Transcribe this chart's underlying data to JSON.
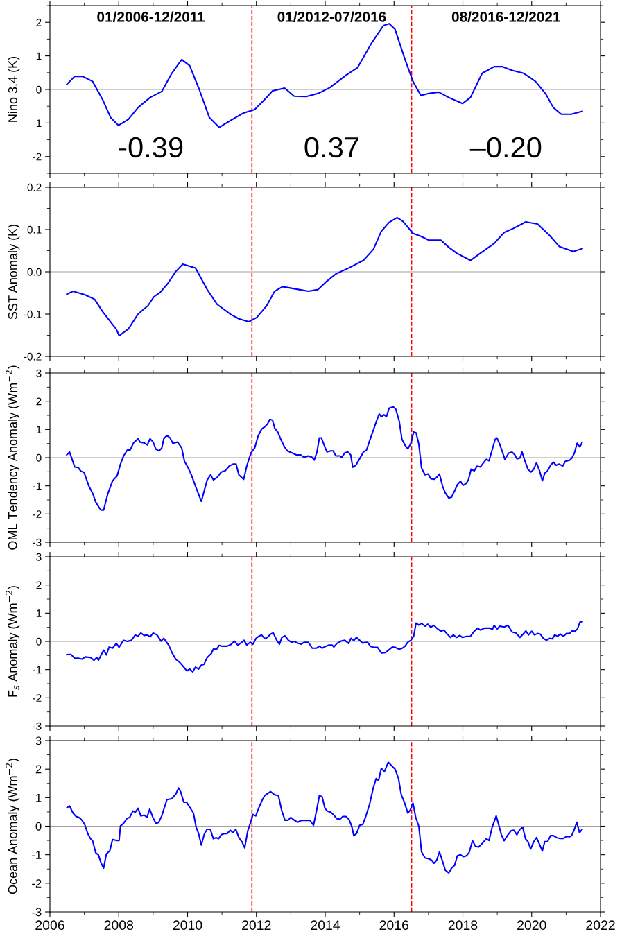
{
  "chart_data": [
    {
      "type": "line",
      "ylabel": "Nino 3.4 (K)",
      "color": "#0000ff",
      "xlim": [
        2006,
        2022
      ],
      "xticks": [
        2006,
        2008,
        2010,
        2012,
        2014,
        2016,
        2018,
        2020,
        2022
      ],
      "ylim": [
        -2.5,
        2.5
      ],
      "yticks": [
        -2,
        {
          "value": -1,
          "label": "1"
        },
        0,
        1,
        2
      ],
      "tick_labels": "y",
      "annotations": [
        "01/2006-12/2011",
        "01/2012-07/2016",
        "08/2016-12/2021",
        "-0.39",
        "0.37",
        "–0.20"
      ],
      "ref_lines": [
        {
          "axis": "y",
          "value": 0,
          "color": "#a0a0a0",
          "line_style": "solid"
        },
        {
          "axis": "x",
          "value": 2011.87,
          "color": "#ff0000",
          "line_style": "dashed"
        },
        {
          "axis": "x",
          "value": 2016.51,
          "color": "#ff0000",
          "line_style": "dashed"
        }
      ],
      "x": [
        2006.49,
        2006.72,
        2006.95,
        2007.24,
        2007.53,
        2007.76,
        2007.99,
        2008.28,
        2008.56,
        2008.91,
        2009.25,
        2009.54,
        2009.83,
        2010.06,
        2010.34,
        2010.63,
        2010.92,
        2011.21,
        2011.61,
        2011.95,
        2012.24,
        2012.47,
        2012.82,
        2013.1,
        2013.45,
        2013.79,
        2014.14,
        2014.6,
        2014.94,
        2015.34,
        2015.69,
        2015.86,
        2016.03,
        2016.32,
        2016.55,
        2016.78,
        2017.01,
        2017.3,
        2017.59,
        2017.99,
        2018.22,
        2018.56,
        2018.91,
        2019.14,
        2019.43,
        2019.77,
        2020.11,
        2020.4,
        2020.63,
        2020.86,
        2021.15,
        2021.47
      ],
      "values": [
        0.15,
        0.39,
        0.39,
        0.24,
        -0.3,
        -0.83,
        -1.07,
        -0.89,
        -0.54,
        -0.24,
        -0.06,
        0.48,
        0.89,
        0.71,
        0,
        -0.83,
        -1.13,
        -0.95,
        -0.71,
        -0.6,
        -0.3,
        -0.04,
        0.04,
        -0.2,
        -0.21,
        -0.12,
        0.06,
        0.42,
        0.65,
        1.37,
        1.9,
        1.96,
        1.79,
        0.89,
        0.24,
        -0.18,
        -0.12,
        -0.08,
        -0.24,
        -0.42,
        -0.24,
        0.48,
        0.68,
        0.68,
        0.57,
        0.48,
        0.24,
        -0.12,
        -0.54,
        -0.74,
        -0.74,
        -0.65
      ]
    },
    {
      "type": "line",
      "ylabel": "SST Anomaly (K)",
      "color": "#0000ff",
      "xlim": [
        2006,
        2022
      ],
      "xticks": [
        2006,
        2008,
        2010,
        2012,
        2014,
        2016,
        2018,
        2020,
        2022
      ],
      "ylim": [
        -0.2,
        0.2
      ],
      "yticks": [
        -0.2,
        -0.1,
        {
          "value": 0,
          "label": "0.0"
        },
        0.1,
        0.2
      ],
      "tick_labels": "y",
      "ref_lines": [
        {
          "axis": "y",
          "value": 0,
          "color": "#a0a0a0",
          "line_style": "solid"
        },
        {
          "axis": "x",
          "value": 2011.87,
          "color": "#ff0000",
          "line_style": "dashed"
        },
        {
          "axis": "x",
          "value": 2016.51,
          "color": "#ff0000",
          "line_style": "dashed"
        }
      ],
      "x": [
        2006.49,
        2006.67,
        2007.01,
        2007.3,
        2007.53,
        2007.93,
        2008.01,
        2008.28,
        2008.56,
        2008.85,
        2009.02,
        2009.2,
        2009.43,
        2009.66,
        2009.86,
        2010.23,
        2010.57,
        2010.86,
        2011.26,
        2011.49,
        2011.78,
        2012.01,
        2012.3,
        2012.53,
        2012.76,
        2013.1,
        2013.51,
        2013.79,
        2014.02,
        2014.31,
        2014.71,
        2015.11,
        2015.4,
        2015.63,
        2015.86,
        2016.09,
        2016.26,
        2016.55,
        2016.78,
        2017.01,
        2017.36,
        2017.59,
        2017.82,
        2018.22,
        2018.51,
        2018.91,
        2019.2,
        2019.48,
        2019.83,
        2020.17,
        2020.52,
        2020.8,
        2021.21,
        2021.47
      ],
      "values": [
        -0.053,
        -0.046,
        -0.054,
        -0.065,
        -0.094,
        -0.136,
        -0.151,
        -0.135,
        -0.1,
        -0.08,
        -0.059,
        -0.049,
        -0.027,
        0.001,
        0.018,
        0.009,
        -0.042,
        -0.077,
        -0.101,
        -0.111,
        -0.118,
        -0.108,
        -0.08,
        -0.046,
        -0.035,
        -0.04,
        -0.046,
        -0.042,
        -0.024,
        -0.005,
        0.01,
        0.027,
        0.053,
        0.096,
        0.117,
        0.128,
        0.119,
        0.091,
        0.084,
        0.075,
        0.075,
        0.058,
        0.044,
        0.027,
        0.044,
        0.067,
        0.093,
        0.103,
        0.118,
        0.113,
        0.086,
        0.06,
        0.048,
        0.055
      ]
    },
    {
      "type": "line",
      "ylabel": "OML Tendency Anomaly (Wm$^{−2}$)",
      "color": "#0000ff",
      "xlim": [
        2006,
        2022
      ],
      "xticks": [
        2006,
        2008,
        2010,
        2012,
        2014,
        2016,
        2018,
        2020,
        2022
      ],
      "ylim": [
        -3,
        3
      ],
      "yticks": [
        -3,
        -2,
        -1,
        0,
        1,
        2,
        3
      ],
      "tick_labels": "y",
      "ref_lines": [
        {
          "axis": "y",
          "value": 0,
          "color": "#a0a0a0",
          "line_style": "solid"
        },
        {
          "axis": "x",
          "value": 2011.87,
          "color": "#ff0000",
          "line_style": "dashed"
        },
        {
          "axis": "x",
          "value": 2016.51,
          "color": "#ff0000",
          "line_style": "dashed"
        }
      ],
      "x": [
        2006.49,
        2006.57,
        2006.72,
        2006.82,
        2006.9,
        2006.99,
        2007.13,
        2007.24,
        2007.33,
        2007.44,
        2007.49,
        2007.56,
        2007.68,
        2007.82,
        2007.95,
        2008.05,
        2008.14,
        2008.25,
        2008.33,
        2008.43,
        2008.56,
        2008.62,
        2008.74,
        2008.83,
        2008.91,
        2009.0,
        2009.08,
        2009.17,
        2009.25,
        2009.31,
        2009.4,
        2009.49,
        2009.57,
        2009.71,
        2009.83,
        2009.91,
        2010.02,
        2010.11,
        2010.23,
        2010.4,
        2010.57,
        2010.67,
        2010.75,
        2010.86,
        2010.98,
        2011.09,
        2011.21,
        2011.32,
        2011.41,
        2011.49,
        2011.63,
        2011.72,
        2011.84,
        2011.95,
        2012.05,
        2012.15,
        2012.24,
        2012.32,
        2012.39,
        2012.47,
        2012.53,
        2012.62,
        2012.72,
        2012.82,
        2012.9,
        2013.05,
        2013.16,
        2013.28,
        2013.39,
        2013.51,
        2013.62,
        2013.68,
        2013.76,
        2013.83,
        2013.89,
        2013.97,
        2014.05,
        2014.16,
        2014.23,
        2014.31,
        2014.43,
        2014.48,
        2014.57,
        2014.66,
        2014.74,
        2014.8,
        2014.89,
        2015.0,
        2015.11,
        2015.2,
        2015.29,
        2015.4,
        2015.49,
        2015.57,
        2015.63,
        2015.71,
        2015.78,
        2015.86,
        2015.98,
        2016.05,
        2016.15,
        2016.23,
        2016.32,
        2016.4,
        2016.49,
        2016.57,
        2016.64,
        2016.72,
        2016.8,
        2016.9,
        2016.99,
        2017.07,
        2017.16,
        2017.24,
        2017.32,
        2017.41,
        2017.49,
        2017.59,
        2017.67,
        2017.76,
        2017.84,
        2017.93,
        2018.01,
        2018.1,
        2018.16,
        2018.24,
        2018.33,
        2018.41,
        2018.51,
        2018.6,
        2018.68,
        2018.76,
        2018.85,
        2018.94,
        2018.99,
        2019.07,
        2019.17,
        2019.22,
        2019.33,
        2019.43,
        2019.51,
        2019.57,
        2019.66,
        2019.72,
        2019.8,
        2019.89,
        2019.98,
        2020.06,
        2020.14,
        2020.23,
        2020.31,
        2020.38,
        2020.46,
        2020.55,
        2020.63,
        2020.71,
        2020.8,
        2020.9,
        2020.98,
        2021.1,
        2021.17,
        2021.24,
        2021.32,
        2021.4,
        2021.47
      ],
      "values": [
        0.1,
        0.2,
        -0.33,
        -0.35,
        -0.48,
        -0.52,
        -1.0,
        -1.26,
        -1.57,
        -1.79,
        -1.86,
        -1.86,
        -1.29,
        -0.82,
        -0.65,
        -0.23,
        0.06,
        0.27,
        0.27,
        0.52,
        0.67,
        0.55,
        0.52,
        0.45,
        0.67,
        0.55,
        0.3,
        0.24,
        0.34,
        0.67,
        0.79,
        0.7,
        0.51,
        0.55,
        0.34,
        -0.13,
        -0.37,
        -0.61,
        -1.01,
        -1.55,
        -0.79,
        -0.61,
        -0.79,
        -0.7,
        -0.51,
        -0.47,
        -0.3,
        -0.23,
        -0.23,
        -0.61,
        -0.77,
        -0.3,
        0.16,
        0.34,
        0.77,
        1.01,
        1.09,
        1.19,
        1.36,
        1.33,
        1.05,
        0.91,
        0.62,
        0.37,
        0.24,
        0.16,
        0.1,
        0.1,
        0.01,
        0.06,
        0.01,
        -0.09,
        0.2,
        0.7,
        0.7,
        0.44,
        0.2,
        0.24,
        0.24,
        0.06,
        0.06,
        0.01,
        0.17,
        0.2,
        0.1,
        -0.34,
        -0.27,
        -0.04,
        0.2,
        0.27,
        0.6,
        0.98,
        1.3,
        1.55,
        1.45,
        1.52,
        1.45,
        1.76,
        1.8,
        1.72,
        1.3,
        0.65,
        0.44,
        0.31,
        0.51,
        0.91,
        0.88,
        0.48,
        -0.37,
        -0.61,
        -0.58,
        -0.75,
        -0.77,
        -0.7,
        -0.58,
        -1.01,
        -1.25,
        -1.43,
        -1.4,
        -1.18,
        -0.96,
        -0.84,
        -0.98,
        -0.91,
        -0.79,
        -0.41,
        -0.47,
        -0.3,
        -0.33,
        -0.18,
        -0.06,
        -0.11,
        0.27,
        0.65,
        0.7,
        0.48,
        0.13,
        -0.06,
        0.16,
        0.2,
        0.1,
        -0.04,
        -0.01,
        0.2,
        -0.11,
        -0.41,
        -0.51,
        -0.41,
        -0.18,
        -0.47,
        -0.82,
        -0.55,
        -0.47,
        -0.27,
        -0.16,
        -0.27,
        -0.23,
        -0.3,
        -0.13,
        -0.09,
        -0.01,
        0.16,
        0.51,
        0.38,
        0.55
      ]
    },
    {
      "type": "line",
      "ylabel": "F$_{s}$ Anomaly (Wm$^{−2}$)",
      "color": "#0000ff",
      "xlim": [
        2006,
        2022
      ],
      "xticks": [
        2006,
        2008,
        2010,
        2012,
        2014,
        2016,
        2018,
        2020,
        2022
      ],
      "ylim": [
        -3,
        3
      ],
      "yticks": [
        -3,
        -2,
        -1,
        0,
        1,
        2,
        3
      ],
      "tick_labels": "y",
      "ref_lines": [
        {
          "axis": "y",
          "value": 0,
          "color": "#a0a0a0",
          "line_style": "solid"
        },
        {
          "axis": "x",
          "value": 2011.87,
          "color": "#ff0000",
          "line_style": "dashed"
        },
        {
          "axis": "x",
          "value": 2016.51,
          "color": "#ff0000",
          "line_style": "dashed"
        }
      ],
      "x": [
        2006.49,
        2006.61,
        2006.72,
        2006.84,
        2006.93,
        2007.03,
        2007.18,
        2007.28,
        2007.36,
        2007.41,
        2007.56,
        2007.64,
        2007.72,
        2007.82,
        2007.93,
        2008.01,
        2008.14,
        2008.25,
        2008.37,
        2008.48,
        2008.56,
        2008.64,
        2008.74,
        2008.83,
        2008.91,
        2009.0,
        2009.11,
        2009.23,
        2009.31,
        2009.45,
        2009.54,
        2009.66,
        2009.77,
        2009.89,
        2009.98,
        2010.06,
        2010.15,
        2010.23,
        2010.32,
        2010.4,
        2010.48,
        2010.57,
        2010.69,
        2010.75,
        2010.84,
        2010.92,
        2011.01,
        2011.15,
        2011.26,
        2011.36,
        2011.46,
        2011.55,
        2011.64,
        2011.72,
        2011.82,
        2011.9,
        2011.99,
        2012.07,
        2012.15,
        2012.24,
        2012.32,
        2012.41,
        2012.49,
        2012.59,
        2012.67,
        2012.74,
        2012.83,
        2012.93,
        2013.02,
        2013.1,
        2013.2,
        2013.3,
        2013.39,
        2013.51,
        2013.62,
        2013.74,
        2013.83,
        2013.91,
        2014.02,
        2014.11,
        2014.2,
        2014.25,
        2014.34,
        2014.46,
        2014.57,
        2014.68,
        2014.75,
        2014.83,
        2014.91,
        2015.0,
        2015.09,
        2015.15,
        2015.23,
        2015.31,
        2015.4,
        2015.52,
        2015.63,
        2015.75,
        2015.84,
        2015.95,
        2016.03,
        2016.15,
        2016.24,
        2016.32,
        2016.4,
        2016.49,
        2016.57,
        2016.64,
        2016.72,
        2016.8,
        2016.9,
        2016.98,
        2017.07,
        2017.16,
        2017.24,
        2017.36,
        2017.45,
        2017.53,
        2017.64,
        2017.72,
        2017.82,
        2017.91,
        2017.99,
        2018.1,
        2018.22,
        2018.33,
        2018.43,
        2018.51,
        2018.63,
        2018.77,
        2018.86,
        2018.91,
        2019.0,
        2019.07,
        2019.2,
        2019.31,
        2019.43,
        2019.54,
        2019.66,
        2019.75,
        2019.83,
        2019.91,
        2020.0,
        2020.08,
        2020.17,
        2020.25,
        2020.34,
        2020.43,
        2020.52,
        2020.6,
        2020.67,
        2020.75,
        2020.83,
        2020.92,
        2021.01,
        2021.1,
        2021.17,
        2021.26,
        2021.33,
        2021.4,
        2021.47
      ],
      "values": [
        -0.47,
        -0.46,
        -0.6,
        -0.6,
        -0.63,
        -0.55,
        -0.57,
        -0.67,
        -0.57,
        -0.67,
        -0.31,
        -0.48,
        -0.2,
        -0.24,
        -0.07,
        -0.21,
        0.04,
        0,
        0.04,
        0.23,
        0.18,
        0.3,
        0.21,
        0.23,
        0.16,
        0.3,
        0.23,
        0.01,
        0.11,
        -0.13,
        -0.38,
        -0.64,
        -0.74,
        -0.91,
        -1.05,
        -0.98,
        -1.08,
        -0.91,
        -0.98,
        -0.84,
        -0.81,
        -0.57,
        -0.43,
        -0.27,
        -0.28,
        -0.14,
        -0.17,
        -0.17,
        -0.11,
        0.01,
        -0.13,
        -0.06,
        0.04,
        -0.13,
        -0.03,
        -0.1,
        0.11,
        0.18,
        0.23,
        0.1,
        0.14,
        0.26,
        0.3,
        0.04,
        -0.1,
        0.14,
        0.2,
        0.04,
        -0.03,
        0,
        -0.06,
        -0.1,
        -0.03,
        -0.03,
        -0.24,
        -0.24,
        -0.17,
        -0.24,
        -0.17,
        -0.13,
        -0.13,
        -0.2,
        -0.07,
        0.01,
        0.04,
        -0.07,
        0.11,
        0.03,
        0.14,
        0.04,
        -0.06,
        -0.04,
        -0.03,
        -0.17,
        -0.21,
        -0.21,
        -0.41,
        -0.4,
        -0.31,
        -0.2,
        -0.21,
        -0.28,
        -0.24,
        -0.17,
        -0.03,
        0.04,
        0.18,
        0.65,
        0.58,
        0.64,
        0.54,
        0.61,
        0.5,
        0.57,
        0.47,
        0.36,
        0.4,
        0.28,
        0.14,
        0.23,
        0.14,
        0.21,
        0.14,
        0.18,
        0.18,
        0.36,
        0.47,
        0.4,
        0.47,
        0.47,
        0.43,
        0.57,
        0.44,
        0.54,
        0.51,
        0.57,
        0.33,
        0.3,
        0.14,
        0.26,
        0.37,
        0.23,
        0.36,
        0.23,
        0.28,
        0.26,
        0.11,
        0.04,
        0.11,
        0.09,
        0.23,
        0.18,
        0.26,
        0.18,
        0.28,
        0.28,
        0.37,
        0.36,
        0.44,
        0.68,
        0.7
      ]
    },
    {
      "type": "line",
      "ylabel": "Ocean Anomaly (Wm$^{−2}$)",
      "color": "#0000ff",
      "xlim": [
        2006,
        2022
      ],
      "xticks": [
        2006,
        2008,
        2010,
        2012,
        2014,
        2016,
        2018,
        2020,
        2022
      ],
      "ylim": [
        -3,
        3
      ],
      "yticks": [
        -3,
        -2,
        -1,
        0,
        1,
        2,
        3
      ],
      "ref_lines": [
        {
          "axis": "y",
          "value": 0,
          "color": "#a0a0a0",
          "line_style": "solid"
        },
        {
          "axis": "x",
          "value": 2011.87,
          "color": "#ff0000",
          "line_style": "dashed"
        },
        {
          "axis": "x",
          "value": 2016.51,
          "color": "#ff0000",
          "line_style": "dashed"
        }
      ],
      "x": [
        2006.49,
        2006.57,
        2006.67,
        2006.76,
        2006.84,
        2006.93,
        2007.01,
        2007.1,
        2007.18,
        2007.24,
        2007.33,
        2007.41,
        2007.49,
        2007.56,
        2007.64,
        2007.74,
        2007.82,
        2007.93,
        2008.01,
        2008.05,
        2008.14,
        2008.24,
        2008.32,
        2008.41,
        2008.48,
        2008.56,
        2008.64,
        2008.74,
        2008.82,
        2008.9,
        2008.99,
        2009.08,
        2009.16,
        2009.25,
        2009.4,
        2009.54,
        2009.66,
        2009.74,
        2009.8,
        2009.89,
        2009.97,
        2010.08,
        2010.17,
        2010.25,
        2010.32,
        2010.4,
        2010.49,
        2010.57,
        2010.66,
        2010.75,
        2010.83,
        2010.9,
        2010.98,
        2011.07,
        2011.15,
        2011.24,
        2011.32,
        2011.4,
        2011.49,
        2011.59,
        2011.66,
        2011.75,
        2011.84,
        2011.9,
        2011.98,
        2012.07,
        2012.16,
        2012.24,
        2012.32,
        2012.41,
        2012.53,
        2012.64,
        2012.74,
        2012.83,
        2012.92,
        2013.0,
        2013.1,
        2013.2,
        2013.3,
        2013.45,
        2013.56,
        2013.66,
        2013.74,
        2013.83,
        2013.91,
        2013.99,
        2014.06,
        2014.16,
        2014.25,
        2014.33,
        2014.43,
        2014.51,
        2014.6,
        2014.69,
        2014.77,
        2014.83,
        2014.91,
        2015.0,
        2015.09,
        2015.17,
        2015.29,
        2015.4,
        2015.48,
        2015.55,
        2015.63,
        2015.72,
        2015.83,
        2015.92,
        2016.03,
        2016.13,
        2016.21,
        2016.3,
        2016.4,
        2016.47,
        2016.55,
        2016.63,
        2016.72,
        2016.8,
        2016.9,
        2017.01,
        2017.09,
        2017.16,
        2017.24,
        2017.32,
        2017.41,
        2017.49,
        2017.59,
        2017.67,
        2017.76,
        2017.84,
        2017.93,
        2018.02,
        2018.1,
        2018.18,
        2018.28,
        2018.37,
        2018.46,
        2018.56,
        2018.68,
        2018.76,
        2018.85,
        2018.97,
        2019.03,
        2019.12,
        2019.2,
        2019.31,
        2019.4,
        2019.48,
        2019.57,
        2019.66,
        2019.74,
        2019.82,
        2019.89,
        2019.97,
        2020.06,
        2020.14,
        2020.23,
        2020.31,
        2020.38,
        2020.46,
        2020.55,
        2020.63,
        2020.72,
        2020.83,
        2020.92,
        2021.01,
        2021.1,
        2021.16,
        2021.24,
        2021.31,
        2021.39,
        2021.47
      ],
      "values": [
        0.64,
        0.71,
        0.46,
        0.34,
        0.31,
        0.21,
        0.06,
        -0.26,
        -0.44,
        -0.51,
        -0.93,
        -1.01,
        -1.3,
        -1.47,
        -0.97,
        -0.86,
        -0.47,
        -0.5,
        -0.5,
        0.01,
        0.1,
        0.27,
        0.31,
        0.53,
        0.49,
        0.63,
        0.36,
        0.39,
        0.31,
        0.6,
        0.31,
        0.1,
        0.13,
        0.36,
        0.93,
        0.96,
        1.13,
        1.34,
        1.2,
        0.84,
        0.84,
        0.63,
        0.46,
        -0.04,
        -0.26,
        -0.66,
        -0.26,
        -0.11,
        -0.11,
        -0.44,
        -0.4,
        -0.44,
        -0.3,
        -0.26,
        -0.26,
        -0.14,
        -0.23,
        -0.11,
        -0.4,
        -0.57,
        -0.76,
        -0.16,
        0.17,
        0.41,
        0.36,
        0.64,
        0.89,
        1.07,
        1.14,
        1.21,
        1.1,
        1.07,
        0.53,
        0.21,
        0.21,
        0.31,
        0.21,
        0.14,
        0.2,
        0.2,
        0.2,
        0.03,
        0.5,
        1.07,
        1.03,
        0.63,
        0.53,
        0.49,
        0.39,
        0.27,
        0.24,
        0.34,
        0.34,
        0.24,
        0,
        -0.33,
        -0.26,
        0.03,
        0.06,
        0.31,
        0.77,
        1.36,
        1.67,
        1.6,
        2.03,
        1.91,
        2.24,
        2.13,
        2.0,
        1.67,
        1.1,
        0.84,
        0.46,
        0.56,
        0.81,
        0.31,
        0,
        -0.9,
        -1.11,
        -1.14,
        -1.19,
        -1.3,
        -1.19,
        -0.9,
        -1.23,
        -1.54,
        -1.64,
        -1.47,
        -1.37,
        -1.04,
        -1.0,
        -1.07,
        -1.04,
        -0.93,
        -0.51,
        -0.71,
        -0.73,
        -0.61,
        -0.44,
        -0.5,
        -0.04,
        0.36,
        0.1,
        -0.3,
        -0.51,
        -0.3,
        -0.16,
        -0.14,
        -0.3,
        -0.11,
        -0.04,
        -0.44,
        -0.54,
        -0.8,
        -0.54,
        -0.4,
        -0.64,
        -0.87,
        -0.54,
        -0.54,
        -0.33,
        -0.33,
        -0.4,
        -0.43,
        -0.43,
        -0.36,
        -0.37,
        -0.33,
        -0.11,
        0.14,
        -0.23,
        -0.11
      ]
    }
  ]
}
